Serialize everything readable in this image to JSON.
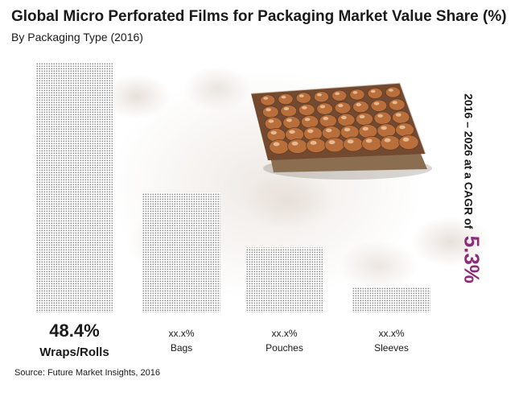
{
  "chart_data": {
    "type": "bar",
    "title": "Global Micro Perforated Films for Packaging Market Value Share (%)",
    "subtitle": "By Packaging Type (2016)",
    "categories": [
      "Wraps/Rolls",
      "Bags",
      "Pouches",
      "Sleeves"
    ],
    "value_labels": [
      "48.4%",
      "xx.x%",
      "xx.x%",
      "xx.x%"
    ],
    "values": [
      48.4,
      23.3,
      12.6,
      5.0
    ],
    "ylim": [
      0,
      50
    ],
    "legend": "none",
    "grid": false
  },
  "cagr": {
    "text": "2016 – 2026 at a CAGR of",
    "value": "5.3%"
  },
  "source": "Source: Future Market Insights, 2016",
  "colors": {
    "bar_dots": "#6b6b6b",
    "cagr_value": "#8e2a7c",
    "egg": "#b5662f",
    "tray": "#8a6e4f"
  }
}
